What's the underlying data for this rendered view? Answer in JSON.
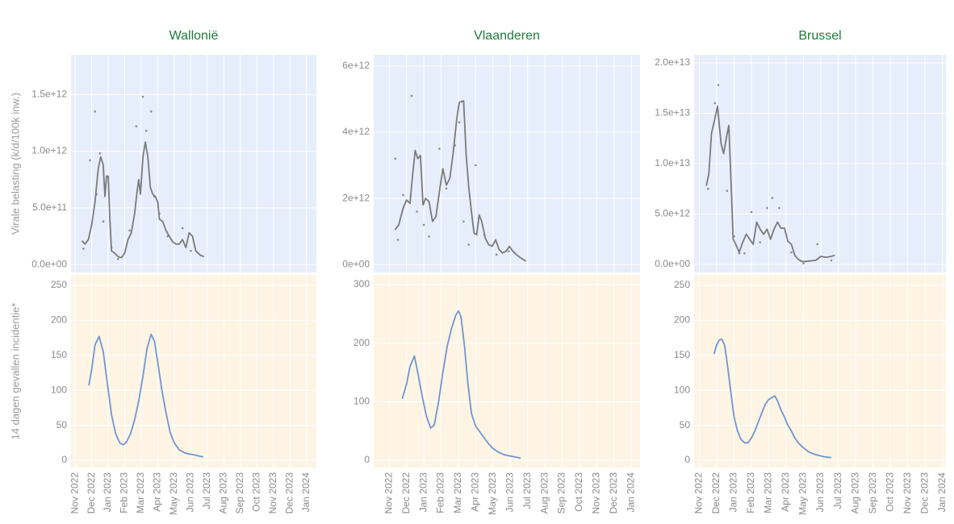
{
  "chart_data": [
    {
      "type": "line",
      "title": "Wallonië",
      "xlim": [
        -0.25,
        14.6
      ],
      "xticks": [
        {
          "value": 0,
          "label": "Nov 2022"
        },
        {
          "value": 1,
          "label": "Dec 2022"
        },
        {
          "value": 2,
          "label": "Jan 2023"
        },
        {
          "value": 3,
          "label": "Feb 2023"
        },
        {
          "value": 4,
          "label": "Mar 2023"
        },
        {
          "value": 5,
          "label": "Apr 2023"
        },
        {
          "value": 6,
          "label": "May 2023"
        },
        {
          "value": 7,
          "label": "Jun 2023"
        },
        {
          "value": 8,
          "label": "Jul 2023"
        },
        {
          "value": 9,
          "label": "Aug 2023"
        },
        {
          "value": 10,
          "label": "Sep 2023"
        },
        {
          "value": 11,
          "label": "Oct 2023"
        },
        {
          "value": 12,
          "label": "Nov 2023"
        },
        {
          "value": 13,
          "label": "Dec 2023"
        },
        {
          "value": 14,
          "label": "Jan 2024"
        }
      ],
      "panels": [
        {
          "ylabel": "Virale belasting (k/d/100k inw.)",
          "background": "#e6eefb",
          "color": "#7a7a7a",
          "ylim": [
            -70000000000.0,
            1850000000000.0
          ],
          "yticks": [
            {
              "value": 0,
              "label": "0.0e+00"
            },
            {
              "value": 500000000000.0,
              "label": "5.0e+11"
            },
            {
              "value": 1000000000000.0,
              "label": "1.0e+12"
            },
            {
              "value": 1500000000000.0,
              "label": "1.5e+12"
            }
          ],
          "x": [
            0.4,
            0.6,
            0.8,
            1.0,
            1.2,
            1.4,
            1.55,
            1.7,
            1.8,
            1.9,
            2.0,
            2.1,
            2.2,
            2.4,
            2.6,
            2.8,
            3.0,
            3.2,
            3.4,
            3.6,
            3.75,
            3.85,
            3.95,
            4.1,
            4.25,
            4.4,
            4.55,
            4.7,
            4.85,
            5.0,
            5.1,
            5.3,
            5.5,
            5.7,
            5.9,
            6.1,
            6.3,
            6.5,
            6.7,
            6.9,
            7.1,
            7.3,
            7.6,
            7.8
          ],
          "values": [
            210000000000.0,
            180000000000.0,
            220000000000.0,
            350000000000.0,
            550000000000.0,
            850000000000.0,
            950000000000.0,
            880000000000.0,
            600000000000.0,
            780000000000.0,
            780000000000.0,
            400000000000.0,
            120000000000.0,
            100000000000.0,
            70000000000.0,
            60000000000.0,
            100000000000.0,
            220000000000.0,
            280000000000.0,
            450000000000.0,
            650000000000.0,
            750000000000.0,
            620000000000.0,
            950000000000.0,
            1080000000000.0,
            950000000000.0,
            680000000000.0,
            620000000000.0,
            600000000000.0,
            550000000000.0,
            400000000000.0,
            380000000000.0,
            300000000000.0,
            250000000000.0,
            200000000000.0,
            180000000000.0,
            180000000000.0,
            220000000000.0,
            150000000000.0,
            280000000000.0,
            250000000000.0,
            120000000000.0,
            80000000000.0,
            70000000000.0
          ],
          "points": {
            "color": "#8c8c8c",
            "x": [
              0.5,
              0.9,
              1.2,
              1.3,
              1.5,
              1.7,
              2.2,
              2.6,
              3.3,
              3.7,
              4.1,
              4.3,
              4.6,
              4.8,
              5.1,
              5.6,
              6.5,
              7.0
            ],
            "values": [
              140000000000.0,
              920000000000.0,
              1350000000000.0,
              620000000000.0,
              980000000000.0,
              380000000000.0,
              150000000000.0,
              50000000000.0,
              300000000000.0,
              1220000000000.0,
              1480000000000.0,
              1180000000000.0,
              1350000000000.0,
              600000000000.0,
              450000000000.0,
              250000000000.0,
              320000000000.0,
              120000000000.0
            ]
          }
        },
        {
          "ylabel": "14 dagen gevallen incidentie*",
          "background": "#fdf4e4",
          "color": "#6f96d1",
          "ylim": [
            -10.3,
            264.9
          ],
          "yticks": [
            0,
            50,
            100,
            150,
            200,
            250
          ],
          "x": [
            0.83,
            1.0,
            1.2,
            1.45,
            1.7,
            1.95,
            2.2,
            2.45,
            2.7,
            2.9,
            3.1,
            3.35,
            3.6,
            3.85,
            4.1,
            4.35,
            4.6,
            4.8,
            5.0,
            5.25,
            5.5,
            5.75,
            6.0,
            6.3,
            6.6,
            6.9,
            7.2,
            7.5,
            7.75
          ],
          "values": [
            107,
            130,
            165,
            177,
            155,
            110,
            65,
            38,
            25,
            22,
            26,
            38,
            58,
            85,
            120,
            160,
            180,
            170,
            140,
            100,
            68,
            40,
            25,
            15,
            11,
            9,
            8,
            6,
            5
          ]
        }
      ]
    },
    {
      "type": "line",
      "title": "Vlaanderen",
      "xlim": [
        -0.9,
        14.5
      ],
      "xticks": [
        {
          "value": 0,
          "label": "Nov 2022"
        },
        {
          "value": 1,
          "label": "Dec 2022"
        },
        {
          "value": 2,
          "label": "Jan 2023"
        },
        {
          "value": 3,
          "label": "Feb 2023"
        },
        {
          "value": 4,
          "label": "Mar 2023"
        },
        {
          "value": 5,
          "label": "Apr 2023"
        },
        {
          "value": 6,
          "label": "May 2023"
        },
        {
          "value": 7,
          "label": "Jun 2023"
        },
        {
          "value": 8,
          "label": "Jul 2023"
        },
        {
          "value": 9,
          "label": "Aug 2023"
        },
        {
          "value": 10,
          "label": "Sep 2023"
        },
        {
          "value": 11,
          "label": "Oct 2023"
        },
        {
          "value": 12,
          "label": "Nov 2023"
        },
        {
          "value": 13,
          "label": "Dec 2023"
        },
        {
          "value": 14,
          "label": "Jan 2024"
        }
      ],
      "panels": [
        {
          "background": "#e6eefb",
          "color": "#7a7a7a",
          "ylim": [
            -240000000000.0,
            6340000000000.0
          ],
          "yticks": [
            {
              "value": 0,
              "label": "0e+00"
            },
            {
              "value": 2000000000000.0,
              "label": "2e+12"
            },
            {
              "value": 4000000000000.0,
              "label": "4e+12"
            },
            {
              "value": 6000000000000.0,
              "label": "6e+12"
            }
          ],
          "x": [
            0.33,
            0.55,
            0.8,
            1.0,
            1.2,
            1.35,
            1.5,
            1.65,
            1.8,
            1.95,
            2.1,
            2.3,
            2.5,
            2.7,
            2.9,
            3.1,
            3.3,
            3.5,
            3.7,
            3.9,
            4.05,
            4.3,
            4.45,
            4.6,
            4.75,
            4.9,
            5.05,
            5.2,
            5.35,
            5.55,
            5.75,
            5.95,
            6.15,
            6.35,
            6.55,
            6.75,
            6.95,
            7.15,
            7.35,
            7.6,
            7.9
          ],
          "values": [
            1050000000000.0,
            1200000000000.0,
            1700000000000.0,
            1950000000000.0,
            1850000000000.0,
            2700000000000.0,
            3450000000000.0,
            3200000000000.0,
            3300000000000.0,
            1800000000000.0,
            2000000000000.0,
            1900000000000.0,
            1300000000000.0,
            1450000000000.0,
            2200000000000.0,
            2900000000000.0,
            2400000000000.0,
            2600000000000.0,
            3400000000000.0,
            4400000000000.0,
            4900000000000.0,
            4950000000000.0,
            3300000000000.0,
            2300000000000.0,
            1600000000000.0,
            950000000000.0,
            900000000000.0,
            1500000000000.0,
            1300000000000.0,
            800000000000.0,
            600000000000.0,
            550000000000.0,
            750000000000.0,
            450000000000.0,
            350000000000.0,
            400000000000.0,
            550000000000.0,
            400000000000.0,
            300000000000.0,
            200000000000.0,
            100000000000.0
          ],
          "points": {
            "color": "#8c8c8c",
            "x": [
              0.35,
              0.5,
              0.8,
              1.3,
              1.6,
              2.0,
              2.3,
              2.9,
              3.3,
              3.8,
              4.05,
              4.3,
              4.6,
              5.0,
              5.5,
              6.2,
              6.9
            ],
            "values": [
              3200000000000.0,
              750000000000.0,
              2100000000000.0,
              5100000000000.0,
              1600000000000.0,
              1200000000000.0,
              850000000000.0,
              3500000000000.0,
              2300000000000.0,
              3600000000000.0,
              4300000000000.0,
              1300000000000.0,
              600000000000.0,
              3000000000000.0,
              900000000000.0,
              300000000000.0,
              400000000000.0
            ]
          }
        },
        {
          "background": "#fdf4e4",
          "color": "#6f96d1",
          "ylim": [
            -12.4,
            316.5
          ],
          "yticks": [
            0,
            100,
            200,
            300
          ],
          "x": [
            0.75,
            1.0,
            1.2,
            1.45,
            1.65,
            1.9,
            2.15,
            2.4,
            2.6,
            2.85,
            3.1,
            3.35,
            3.6,
            3.85,
            4.0,
            4.15,
            4.35,
            4.55,
            4.75,
            5.0,
            5.25,
            5.5,
            5.75,
            6.0,
            6.3,
            6.6,
            6.9,
            7.2,
            7.6
          ],
          "values": [
            105,
            130,
            160,
            178,
            150,
            110,
            75,
            55,
            60,
            100,
            150,
            195,
            225,
            248,
            255,
            245,
            195,
            130,
            80,
            58,
            48,
            38,
            28,
            20,
            14,
            10,
            8,
            6,
            4
          ]
        }
      ]
    },
    {
      "type": "line",
      "title": "Brussel",
      "xlim": [
        -0.3,
        14.2
      ],
      "xticks": [
        {
          "value": 0,
          "label": "Nov 2022"
        },
        {
          "value": 1,
          "label": "Dec 2022"
        },
        {
          "value": 2,
          "label": "Jan 2023"
        },
        {
          "value": 3,
          "label": "Feb 2023"
        },
        {
          "value": 4,
          "label": "Mar 2023"
        },
        {
          "value": 5,
          "label": "Apr 2023"
        },
        {
          "value": 6,
          "label": "May 2023"
        },
        {
          "value": 7,
          "label": "Jun 2023"
        },
        {
          "value": 8,
          "label": "Jul 2023"
        },
        {
          "value": 9,
          "label": "Aug 2023"
        },
        {
          "value": 10,
          "label": "Sep 2023"
        },
        {
          "value": 11,
          "label": "Oct 2023"
        },
        {
          "value": 12,
          "label": "Nov 2023"
        },
        {
          "value": 13,
          "label": "Dec 2023"
        },
        {
          "value": 14,
          "label": "Jan 2024"
        }
      ],
      "panels": [
        {
          "background": "#e6eefb",
          "color": "#7a7a7a",
          "ylim": [
            -800000000000.0,
            20800000000000.0
          ],
          "yticks": [
            {
              "value": 0,
              "label": "0.0e+00"
            },
            {
              "value": 5000000000000.0,
              "label": "5.0e+12"
            },
            {
              "value": 10000000000000.0,
              "label": "1.0e+13"
            },
            {
              "value": 15000000000000.0,
              "label": "1.5e+13"
            },
            {
              "value": 20000000000000.0,
              "label": "2.0e+13"
            }
          ],
          "x": [
            0.4,
            0.55,
            0.7,
            0.9,
            1.05,
            1.25,
            1.4,
            1.55,
            1.7,
            1.85,
            1.95,
            2.1,
            2.3,
            2.5,
            2.7,
            2.9,
            3.1,
            3.3,
            3.5,
            3.7,
            3.9,
            4.1,
            4.3,
            4.5,
            4.7,
            4.9,
            5.1,
            5.3,
            5.5,
            5.7,
            5.9,
            6.1,
            6.4,
            6.7,
            7.0,
            7.3,
            7.6,
            7.8
          ],
          "values": [
            7800000000000.0,
            9000000000000.0,
            13000000000000.0,
            14500000000000.0,
            15700000000000.0,
            12000000000000.0,
            11000000000000.0,
            12500000000000.0,
            13800000000000.0,
            7000000000000.0,
            2500000000000.0,
            2000000000000.0,
            1200000000000.0,
            2200000000000.0,
            3000000000000.0,
            2500000000000.0,
            2000000000000.0,
            4200000000000.0,
            3500000000000.0,
            3000000000000.0,
            3500000000000.0,
            2500000000000.0,
            3500000000000.0,
            4200000000000.0,
            3600000000000.0,
            3600000000000.0,
            2300000000000.0,
            2000000000000.0,
            900000000000.0,
            500000000000.0,
            300000000000.0,
            300000000000.0,
            350000000000.0,
            400000000000.0,
            800000000000.0,
            700000000000.0,
            800000000000.0,
            900000000000.0
          ],
          "points": {
            "color": "#8c8c8c",
            "x": [
              0.5,
              0.9,
              1.1,
              1.6,
              2.0,
              2.3,
              2.6,
              3.0,
              3.5,
              3.9,
              4.2,
              4.6,
              5.3,
              6.0,
              6.8,
              7.6
            ],
            "values": [
              7500000000000.0,
              16000000000000.0,
              17800000000000.0,
              7300000000000.0,
              2800000000000.0,
              1100000000000.0,
              1100000000000.0,
              5200000000000.0,
              2200000000000.0,
              5600000000000.0,
              6600000000000.0,
              5600000000000.0,
              1200000000000.0,
              100000000000.0,
              2000000000000.0,
              400000000000.0
            ]
          }
        },
        {
          "background": "#fdf4e4",
          "color": "#6f96d1",
          "ylim": [
            -10.3,
            264.9
          ],
          "yticks": [
            0,
            50,
            100,
            150,
            200,
            250
          ],
          "x": [
            0.85,
            1.0,
            1.15,
            1.3,
            1.45,
            1.6,
            1.8,
            2.0,
            2.2,
            2.4,
            2.6,
            2.8,
            3.0,
            3.2,
            3.4,
            3.6,
            3.8,
            4.0,
            4.2,
            4.35,
            4.5,
            4.7,
            4.9,
            5.1,
            5.3,
            5.5,
            5.7,
            5.9,
            6.1,
            6.3,
            6.6,
            6.9,
            7.2,
            7.6
          ],
          "values": [
            152,
            165,
            172,
            173,
            165,
            140,
            100,
            62,
            42,
            30,
            25,
            25,
            32,
            42,
            55,
            68,
            80,
            87,
            90,
            92,
            85,
            72,
            62,
            50,
            42,
            32,
            25,
            20,
            16,
            12,
            9,
            7,
            5,
            4
          ]
        }
      ]
    }
  ]
}
